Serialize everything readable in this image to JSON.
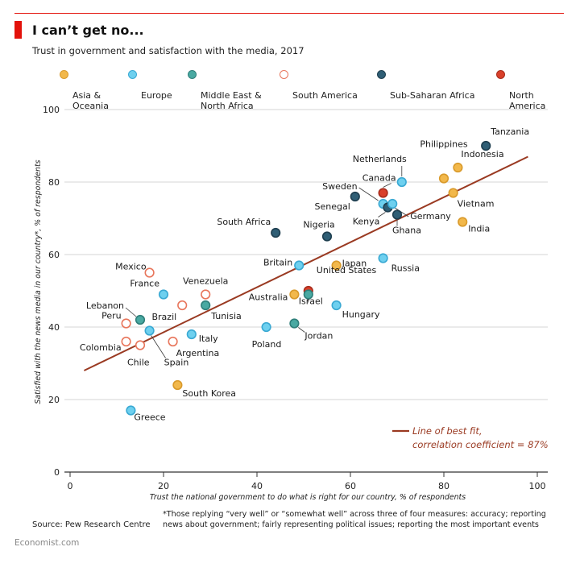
{
  "header": {
    "title": "I can’t get no...",
    "subtitle": "Trust in government and satisfaction with the media, 2017"
  },
  "colors": {
    "accent": "#e3120b",
    "asia": "#f2b84b",
    "europe": "#6ed0ef",
    "mena": "#49a9a2",
    "south_america": "#ffffff",
    "south_america_stroke": "#e8765c",
    "africa": "#2f5e75",
    "north_america": "#d9402b",
    "trend": "#9a3a22",
    "grid": "#d6d6d6"
  },
  "legend": [
    {
      "key": "asia",
      "label": "Asia &\nOceania"
    },
    {
      "key": "europe",
      "label": "Europe"
    },
    {
      "key": "mena",
      "label": "Middle East &\nNorth Africa"
    },
    {
      "key": "south_america",
      "label": "South America"
    },
    {
      "key": "africa",
      "label": "Sub-Saharan Africa"
    },
    {
      "key": "north_america",
      "label": "North\nAmerica"
    }
  ],
  "chart_data": {
    "type": "scatter",
    "title": "I can’t get no...",
    "subtitle": "Trust in government and satisfaction with the media, 2017",
    "xlabel": "Trust the national government to do what is right for our country, % of respondents",
    "ylabel": "Satisfied with the news media in our country*, % of respondents",
    "xlim": [
      0,
      100
    ],
    "ylim": [
      0,
      100
    ],
    "xticks": [
      0,
      20,
      40,
      60,
      80,
      100
    ],
    "yticks": [
      0,
      20,
      40,
      60,
      80,
      100
    ],
    "grid": true,
    "trend_line": {
      "x": [
        3,
        98
      ],
      "y": [
        28,
        87
      ],
      "label_line1": "Line of best fit,",
      "label_line2": "correlation coefficient = 87%"
    },
    "points": [
      {
        "name": "Tanzania",
        "region": "africa",
        "x": 89,
        "y": 90
      },
      {
        "name": "Philippines",
        "region": "asia",
        "x": 80,
        "y": 81
      },
      {
        "name": "Indonesia",
        "region": "asia",
        "x": 83,
        "y": 84
      },
      {
        "name": "Vietnam",
        "region": "asia",
        "x": 82,
        "y": 77
      },
      {
        "name": "India",
        "region": "asia",
        "x": 84,
        "y": 69
      },
      {
        "name": "Netherlands",
        "region": "europe",
        "x": 71,
        "y": 80
      },
      {
        "name": "Canada",
        "region": "north_america",
        "x": 67,
        "y": 77
      },
      {
        "name": "Sweden",
        "region": "europe",
        "x": 67,
        "y": 74
      },
      {
        "name": "Kenya",
        "region": "africa",
        "x": 68,
        "y": 73
      },
      {
        "name": "Germany",
        "region": "europe",
        "x": 69,
        "y": 74
      },
      {
        "name": "Ghana",
        "region": "africa",
        "x": 70,
        "y": 71
      },
      {
        "name": "Senegal",
        "region": "africa",
        "x": 61,
        "y": 76
      },
      {
        "name": "Nigeria",
        "region": "africa",
        "x": 55,
        "y": 65
      },
      {
        "name": "South Africa",
        "region": "africa",
        "x": 44,
        "y": 66
      },
      {
        "name": "Russia",
        "region": "europe",
        "x": 67,
        "y": 59
      },
      {
        "name": "Japan",
        "region": "asia",
        "x": 57,
        "y": 57
      },
      {
        "name": "Britain",
        "region": "europe",
        "x": 49,
        "y": 57
      },
      {
        "name": "United States",
        "region": "north_america",
        "x": 51,
        "y": 50
      },
      {
        "name": "Israel",
        "region": "mena",
        "x": 51,
        "y": 49
      },
      {
        "name": "Australia",
        "region": "asia",
        "x": 48,
        "y": 49
      },
      {
        "name": "Hungary",
        "region": "europe",
        "x": 57,
        "y": 46
      },
      {
        "name": "Jordan",
        "region": "mena",
        "x": 48,
        "y": 41
      },
      {
        "name": "Poland",
        "region": "europe",
        "x": 42,
        "y": 40
      },
      {
        "name": "Mexico",
        "region": "south_america",
        "x": 17,
        "y": 55
      },
      {
        "name": "France",
        "region": "europe",
        "x": 20,
        "y": 49
      },
      {
        "name": "Venezuela",
        "region": "south_america",
        "x": 29,
        "y": 49
      },
      {
        "name": "Tunisia",
        "region": "mena",
        "x": 29,
        "y": 46
      },
      {
        "name": "Brazil",
        "region": "south_america",
        "x": 24,
        "y": 46
      },
      {
        "name": "Lebanon",
        "region": "mena",
        "x": 15,
        "y": 42
      },
      {
        "name": "Peru",
        "region": "south_america",
        "x": 12,
        "y": 41
      },
      {
        "name": "Spain",
        "region": "europe",
        "x": 17,
        "y": 39
      },
      {
        "name": "Italy",
        "region": "europe",
        "x": 26,
        "y": 38
      },
      {
        "name": "Argentina",
        "region": "south_america",
        "x": 22,
        "y": 36
      },
      {
        "name": "Colombia",
        "region": "south_america",
        "x": 12,
        "y": 36
      },
      {
        "name": "Chile",
        "region": "south_america",
        "x": 15,
        "y": 35
      },
      {
        "name": "South Korea",
        "region": "asia",
        "x": 23,
        "y": 24
      },
      {
        "name": "Greece",
        "region": "europe",
        "x": 13,
        "y": 17
      }
    ]
  },
  "footer": {
    "source": "Source: Pew Research Centre",
    "footnote": "*Those replying “very well” or “somewhat well” across three of four measures: accuracy; reporting news about government; fairly representing political issues; reporting the most important events",
    "brand": "Economist.com"
  }
}
